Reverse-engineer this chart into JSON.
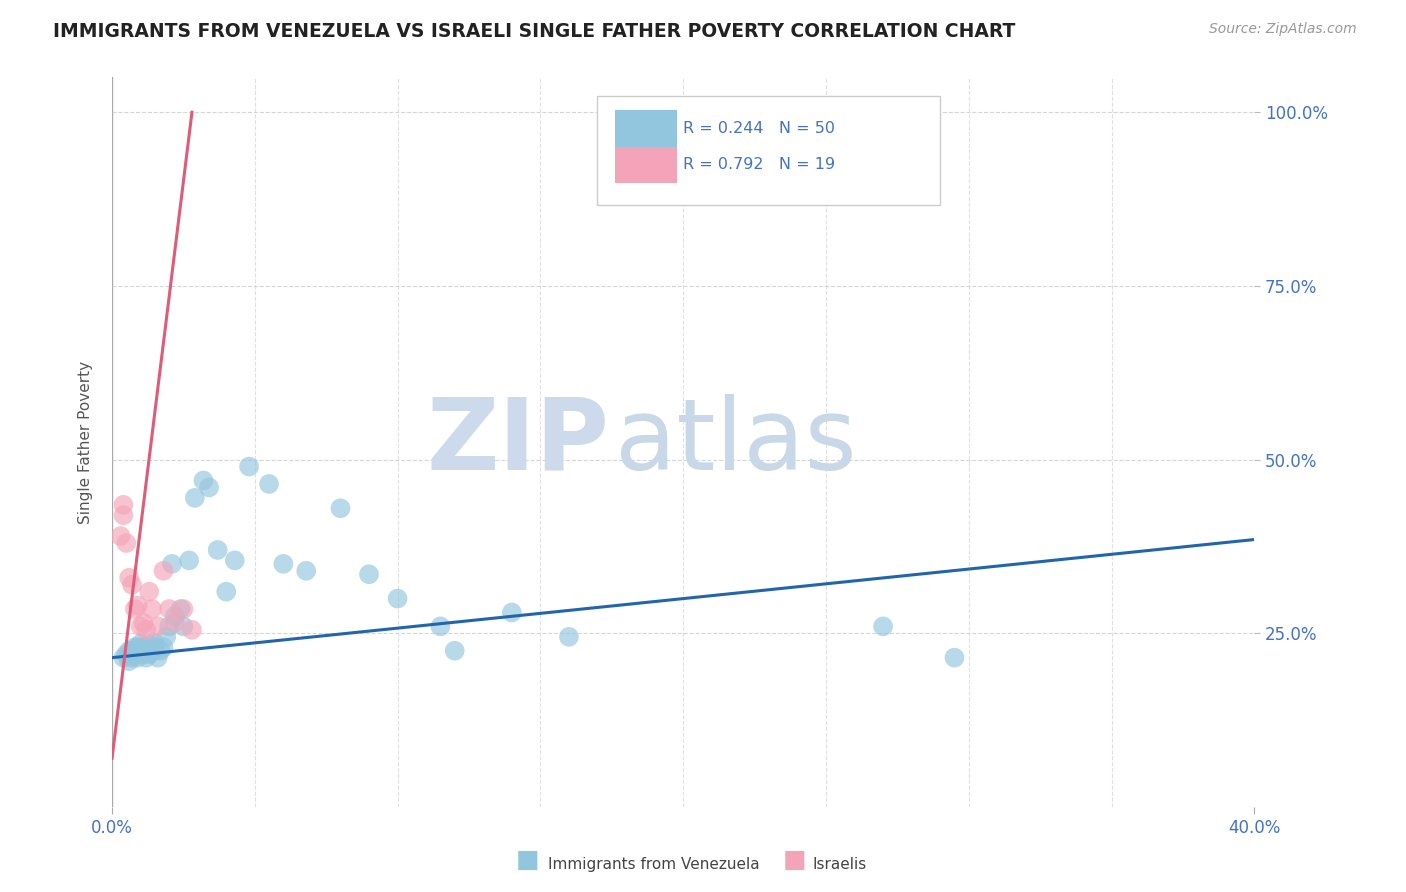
{
  "title": "IMMIGRANTS FROM VENEZUELA VS ISRAELI SINGLE FATHER POVERTY CORRELATION CHART",
  "source": "Source: ZipAtlas.com",
  "ylabel": "Single Father Poverty",
  "xlim": [
    0.0,
    0.4
  ],
  "ylim": [
    0.0,
    1.05
  ],
  "xtick_labels": [
    "0.0%",
    "40.0%"
  ],
  "ytick_labels": [
    "25.0%",
    "50.0%",
    "75.0%",
    "100.0%"
  ],
  "ytick_vals": [
    0.25,
    0.5,
    0.75,
    1.0
  ],
  "legend_R1": "R = 0.244",
  "legend_N1": "N = 50",
  "legend_R2": "R = 0.792",
  "legend_N2": "N = 19",
  "color_blue": "#92c5de",
  "color_pink": "#f4a4b8",
  "color_blue_line": "#2166ac",
  "color_pink_line": "#e05a7a",
  "color_title": "#222222",
  "color_source": "#999999",
  "color_axis_labels": "#555555",
  "color_tick_labels": "#4472c4",
  "watermark_zip_color": "#d0dff0",
  "watermark_atlas_color": "#c8d8ea",
  "background_color": "#ffffff",
  "grid_color": "#cccccc",
  "blue_scatter_x": [
    0.004,
    0.005,
    0.006,
    0.006,
    0.007,
    0.007,
    0.008,
    0.008,
    0.009,
    0.009,
    0.01,
    0.01,
    0.011,
    0.011,
    0.012,
    0.012,
    0.013,
    0.013,
    0.014,
    0.015,
    0.015,
    0.016,
    0.017,
    0.018,
    0.019,
    0.02,
    0.021,
    0.022,
    0.024,
    0.025,
    0.027,
    0.029,
    0.032,
    0.034,
    0.037,
    0.04,
    0.043,
    0.048,
    0.055,
    0.06,
    0.068,
    0.08,
    0.09,
    0.1,
    0.115,
    0.12,
    0.14,
    0.16,
    0.27,
    0.295
  ],
  "blue_scatter_y": [
    0.215,
    0.22,
    0.21,
    0.225,
    0.215,
    0.225,
    0.22,
    0.23,
    0.215,
    0.23,
    0.225,
    0.235,
    0.22,
    0.23,
    0.215,
    0.225,
    0.22,
    0.235,
    0.23,
    0.225,
    0.235,
    0.215,
    0.225,
    0.23,
    0.245,
    0.26,
    0.35,
    0.275,
    0.285,
    0.26,
    0.355,
    0.445,
    0.47,
    0.46,
    0.37,
    0.31,
    0.355,
    0.49,
    0.465,
    0.35,
    0.34,
    0.43,
    0.335,
    0.3,
    0.26,
    0.225,
    0.28,
    0.245,
    0.26,
    0.215
  ],
  "pink_scatter_x": [
    0.003,
    0.004,
    0.004,
    0.005,
    0.006,
    0.007,
    0.008,
    0.009,
    0.01,
    0.011,
    0.012,
    0.013,
    0.014,
    0.016,
    0.018,
    0.02,
    0.022,
    0.025,
    0.028
  ],
  "pink_scatter_y": [
    0.39,
    0.42,
    0.435,
    0.38,
    0.33,
    0.32,
    0.285,
    0.29,
    0.26,
    0.265,
    0.255,
    0.31,
    0.285,
    0.26,
    0.34,
    0.285,
    0.265,
    0.285,
    0.255
  ],
  "blue_line_x0": 0.0,
  "blue_line_x1": 0.4,
  "blue_line_y0": 0.215,
  "blue_line_y1": 0.385,
  "pink_line_x0": 0.0,
  "pink_line_x1": 0.028,
  "pink_line_y0": 0.07,
  "pink_line_y1": 1.0
}
